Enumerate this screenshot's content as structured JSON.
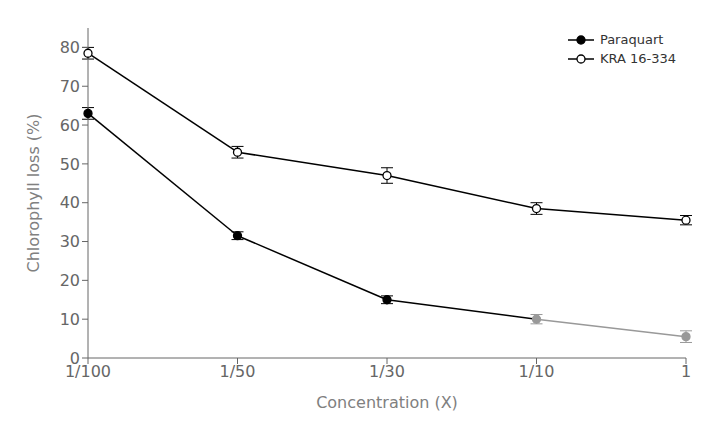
{
  "chart_data": {
    "type": "line",
    "categories": [
      "1/100",
      "1/50",
      "1/30",
      "1/10",
      "1"
    ],
    "series": [
      {
        "name": "Paraquart",
        "color": "#000000",
        "colors": [
          "#000000",
          "#000000",
          "#000000",
          "#999999",
          "#999999"
        ],
        "marker": "circle",
        "line_style": "solid",
        "values": [
          63,
          31.5,
          15,
          10,
          5.5
        ],
        "error": [
          1.5,
          1.0,
          1.0,
          1.2,
          1.5
        ]
      },
      {
        "name": "KRA 16-334",
        "color": "#000000",
        "marker": "open_circle",
        "line_style": "solid",
        "values": [
          78.5,
          53,
          47,
          38.5,
          35.5
        ],
        "error": [
          1.5,
          1.5,
          2.0,
          1.5,
          1.2
        ]
      }
    ],
    "xlabel": "Concentration (X)",
    "ylabel": "Chlorophyll loss (%)",
    "ylim": [
      0,
      85
    ],
    "yticks": [
      0,
      10,
      20,
      30,
      40,
      50,
      60,
      70,
      80
    ],
    "grid": false,
    "legend": "upper right"
  }
}
